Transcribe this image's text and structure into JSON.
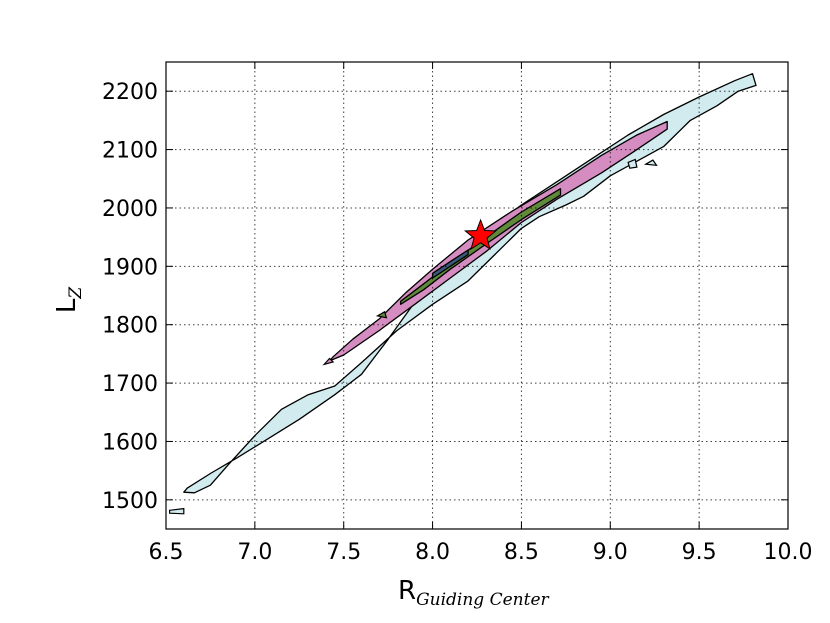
{
  "chart_data": {
    "type": "contour",
    "title": "",
    "xlabel": {
      "main": "R",
      "subscript": "Guiding Center"
    },
    "ylabel": {
      "main": "L",
      "subscript": "Z"
    },
    "xlim": [
      6.5,
      10.0
    ],
    "ylim": [
      1450,
      2250
    ],
    "x_ticks": [
      "6.5",
      "7.0",
      "7.5",
      "8.0",
      "8.5",
      "9.0",
      "9.5",
      "10.0"
    ],
    "y_ticks": [
      "1500",
      "1600",
      "1700",
      "1800",
      "1900",
      "2000",
      "2100",
      "2200"
    ],
    "grid": true,
    "legend": "none",
    "levels": [
      {
        "name": "outer",
        "color": "#d1ebee",
        "upper": [
          [
            6.62,
            1520
          ],
          [
            6.75,
            1545
          ],
          [
            6.9,
            1572
          ],
          [
            7.05,
            1600
          ],
          [
            7.25,
            1638
          ],
          [
            7.45,
            1680
          ],
          [
            7.6,
            1715
          ],
          [
            7.75,
            1775
          ],
          [
            7.95,
            1860
          ],
          [
            8.1,
            1910
          ],
          [
            8.3,
            1960
          ],
          [
            8.5,
            2005
          ],
          [
            8.7,
            2045
          ],
          [
            8.9,
            2085
          ],
          [
            9.1,
            2125
          ],
          [
            9.3,
            2160
          ],
          [
            9.5,
            2190
          ],
          [
            9.7,
            2218
          ],
          [
            9.8,
            2230
          ]
        ],
        "lower": [
          [
            9.82,
            2210
          ],
          [
            9.72,
            2200
          ],
          [
            9.6,
            2175
          ],
          [
            9.45,
            2150
          ],
          [
            9.3,
            2105
          ],
          [
            9.15,
            2080
          ],
          [
            9.0,
            2055
          ],
          [
            8.85,
            2020
          ],
          [
            8.75,
            2005
          ],
          [
            8.6,
            1985
          ],
          [
            8.5,
            1965
          ],
          [
            8.35,
            1920
          ],
          [
            8.2,
            1875
          ],
          [
            8.0,
            1835
          ],
          [
            7.8,
            1790
          ],
          [
            7.6,
            1735
          ],
          [
            7.45,
            1695
          ],
          [
            7.3,
            1680
          ],
          [
            7.15,
            1655
          ],
          [
            7.0,
            1610
          ],
          [
            6.85,
            1560
          ],
          [
            6.75,
            1525
          ],
          [
            6.66,
            1512
          ],
          [
            6.6,
            1513
          ]
        ]
      },
      {
        "name": "middle",
        "color": "#d58cc1",
        "upper": [
          [
            7.44,
            1745
          ],
          [
            7.55,
            1775
          ],
          [
            7.7,
            1810
          ],
          [
            7.85,
            1855
          ],
          [
            8.0,
            1895
          ],
          [
            8.2,
            1945
          ],
          [
            8.45,
            1995
          ],
          [
            8.7,
            2040
          ],
          [
            8.95,
            2090
          ],
          [
            9.15,
            2125
          ],
          [
            9.32,
            2148
          ]
        ],
        "lower": [
          [
            9.32,
            2135
          ],
          [
            9.15,
            2100
          ],
          [
            8.95,
            2060
          ],
          [
            8.7,
            2015
          ],
          [
            8.5,
            1975
          ],
          [
            8.3,
            1925
          ],
          [
            8.1,
            1880
          ],
          [
            7.9,
            1835
          ],
          [
            7.7,
            1790
          ],
          [
            7.5,
            1748
          ],
          [
            7.42,
            1738
          ]
        ]
      },
      {
        "name": "inner",
        "color": "#5f8a3a",
        "upper": [
          [
            7.82,
            1840
          ],
          [
            7.95,
            1870
          ],
          [
            8.1,
            1905
          ],
          [
            8.3,
            1950
          ],
          [
            8.5,
            1993
          ],
          [
            8.72,
            2033
          ]
        ],
        "lower": [
          [
            8.72,
            2022
          ],
          [
            8.5,
            1980
          ],
          [
            8.3,
            1938
          ],
          [
            8.1,
            1895
          ],
          [
            7.95,
            1860
          ],
          [
            7.82,
            1835
          ]
        ]
      },
      {
        "name": "core",
        "color": "#3a5a7a",
        "upper": [
          [
            8.0,
            1888
          ],
          [
            8.1,
            1908
          ],
          [
            8.2,
            1928
          ]
        ],
        "lower": [
          [
            8.2,
            1920
          ],
          [
            8.1,
            1900
          ],
          [
            8.0,
            1880
          ]
        ]
      }
    ],
    "islands": [
      {
        "color": "#d1ebee",
        "points": [
          [
            6.52,
            1482
          ],
          [
            6.6,
            1485
          ],
          [
            6.6,
            1476
          ],
          [
            6.52,
            1477
          ]
        ]
      },
      {
        "color": "#d1ebee",
        "points": [
          [
            9.1,
            2078
          ],
          [
            9.14,
            2083
          ],
          [
            9.15,
            2070
          ],
          [
            9.11,
            2068
          ]
        ]
      },
      {
        "color": "#d1ebee",
        "points": [
          [
            9.2,
            2075
          ],
          [
            9.24,
            2082
          ],
          [
            9.26,
            2073
          ]
        ]
      },
      {
        "color": "#d58cc1",
        "points": [
          [
            7.39,
            1732
          ],
          [
            7.42,
            1742
          ],
          [
            7.44,
            1736
          ]
        ]
      },
      {
        "color": "#5f8a3a",
        "points": [
          [
            7.69,
            1815
          ],
          [
            7.73,
            1822
          ],
          [
            7.74,
            1812
          ]
        ]
      }
    ],
    "marker": {
      "type": "star",
      "x": 8.27,
      "y": 1952,
      "color": "#ff0000"
    }
  }
}
